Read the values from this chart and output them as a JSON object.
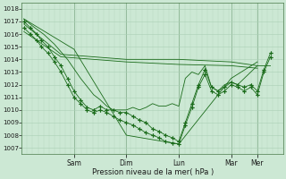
{
  "bg_color": "#cce8d4",
  "grid_color": "#aacfb5",
  "line_color": "#1a6b1a",
  "xlabel": "Pression niveau de la mer( hPa )",
  "ylim": [
    1006.5,
    1018.5
  ],
  "yticks": [
    1007,
    1008,
    1009,
    1010,
    1011,
    1012,
    1013,
    1014,
    1015,
    1016,
    1017,
    1018
  ],
  "day_positions": [
    48,
    96,
    144,
    192,
    216
  ],
  "day_labels": [
    "Sam",
    "Dim",
    "Lun",
    "Mar",
    "Mer"
  ],
  "xlim": [
    0,
    240
  ],
  "lines": [
    {
      "x": [
        2,
        48,
        96,
        144,
        192,
        216
      ],
      "y": [
        1017.2,
        1014.8,
        1008.0,
        1007.3,
        1012.5,
        1013.8
      ],
      "has_markers": false
    },
    {
      "x": [
        2,
        36,
        96,
        144,
        192,
        216
      ],
      "y": [
        1016.8,
        1014.4,
        1014.0,
        1014.0,
        1013.8,
        1013.5
      ],
      "has_markers": false
    },
    {
      "x": [
        2,
        36,
        96,
        144,
        192,
        216
      ],
      "y": [
        1016.2,
        1014.2,
        1013.8,
        1013.6,
        1013.5,
        1013.3
      ],
      "has_markers": false
    },
    {
      "x": [
        2,
        12,
        20,
        30,
        42,
        54,
        66,
        72,
        78,
        84,
        90,
        96,
        102,
        108,
        114,
        120,
        126,
        132,
        138,
        144,
        150,
        156,
        162,
        168,
        174,
        180,
        186,
        192,
        198,
        216,
        228
      ],
      "y": [
        1017.2,
        1016.5,
        1016.0,
        1015.2,
        1014.0,
        1012.5,
        1011.2,
        1010.8,
        1010.3,
        1010.0,
        1010.0,
        1010.0,
        1010.2,
        1010.0,
        1010.2,
        1010.5,
        1010.3,
        1010.3,
        1010.5,
        1010.3,
        1012.5,
        1013.0,
        1012.8,
        1013.5,
        1011.8,
        1011.5,
        1012.0,
        1012.2,
        1012.0,
        1013.5,
        1013.5
      ],
      "has_markers": false
    },
    {
      "x": [
        2,
        8,
        14,
        18,
        24,
        30,
        36,
        42,
        48,
        54,
        60,
        66,
        72,
        78,
        84,
        90,
        96,
        102,
        108,
        114,
        120,
        126,
        132,
        138,
        144,
        150,
        156,
        162,
        168,
        174,
        180,
        186,
        192,
        198,
        204,
        210,
        216,
        222,
        228
      ],
      "y": [
        1017.0,
        1016.5,
        1016.0,
        1015.5,
        1015.0,
        1014.2,
        1013.5,
        1012.5,
        1011.5,
        1010.8,
        1010.2,
        1010.0,
        1010.3,
        1010.0,
        1010.0,
        1009.8,
        1009.8,
        1009.5,
        1009.2,
        1009.0,
        1008.5,
        1008.3,
        1008.0,
        1007.8,
        1007.5,
        1009.0,
        1010.5,
        1012.0,
        1013.2,
        1011.8,
        1011.5,
        1011.8,
        1012.2,
        1012.0,
        1011.8,
        1012.0,
        1011.5,
        1013.2,
        1014.5
      ],
      "has_markers": true
    },
    {
      "x": [
        2,
        8,
        14,
        18,
        24,
        30,
        36,
        42,
        48,
        54,
        60,
        66,
        72,
        78,
        84,
        90,
        96,
        102,
        108,
        114,
        120,
        126,
        132,
        138,
        144,
        150,
        156,
        162,
        168,
        174,
        180,
        186,
        192,
        198,
        204,
        210,
        216,
        222,
        228
      ],
      "y": [
        1016.5,
        1016.0,
        1015.5,
        1015.0,
        1014.5,
        1013.8,
        1013.0,
        1012.0,
        1011.0,
        1010.5,
        1010.0,
        1009.8,
        1010.0,
        1009.8,
        1009.5,
        1009.2,
        1009.0,
        1008.8,
        1008.5,
        1008.2,
        1008.0,
        1007.8,
        1007.5,
        1007.4,
        1007.3,
        1008.8,
        1010.2,
        1011.8,
        1012.8,
        1011.5,
        1011.2,
        1011.5,
        1012.0,
        1011.8,
        1011.5,
        1011.8,
        1011.2,
        1013.0,
        1014.2
      ],
      "has_markers": true
    }
  ]
}
